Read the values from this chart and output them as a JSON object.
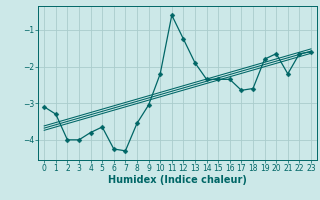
{
  "xlabel": "Humidex (Indice chaleur)",
  "ylabel": "",
  "bg_color": "#cce8e8",
  "grid_color": "#aacccc",
  "line_color": "#006666",
  "xlim": [
    -0.5,
    23.5
  ],
  "ylim": [
    -4.55,
    -0.35
  ],
  "yticks": [
    -4,
    -3,
    -2,
    -1
  ],
  "xticks": [
    0,
    1,
    2,
    3,
    4,
    5,
    6,
    7,
    8,
    9,
    10,
    11,
    12,
    13,
    14,
    15,
    16,
    17,
    18,
    19,
    20,
    21,
    22,
    23
  ],
  "data_x": [
    0,
    1,
    2,
    3,
    4,
    5,
    6,
    7,
    8,
    9,
    10,
    11,
    12,
    13,
    14,
    15,
    16,
    17,
    18,
    19,
    20,
    21,
    22,
    23
  ],
  "data_y": [
    -3.1,
    -3.3,
    -4.0,
    -4.0,
    -3.8,
    -3.65,
    -4.25,
    -4.3,
    -3.55,
    -3.05,
    -2.2,
    -0.6,
    -1.25,
    -1.9,
    -2.35,
    -2.35,
    -2.35,
    -2.65,
    -2.6,
    -1.8,
    -1.65,
    -2.2,
    -1.65,
    -1.6
  ],
  "trend1_x": [
    0,
    23
  ],
  "trend1_y": [
    -3.62,
    -1.52
  ],
  "trend2_x": [
    0,
    23
  ],
  "trend2_y": [
    -3.68,
    -1.58
  ],
  "trend3_x": [
    0,
    23
  ],
  "trend3_y": [
    -3.74,
    -1.64
  ],
  "marker_size": 2.5,
  "line_width": 0.9,
  "tick_fontsize": 5.5,
  "label_fontsize": 7.0
}
